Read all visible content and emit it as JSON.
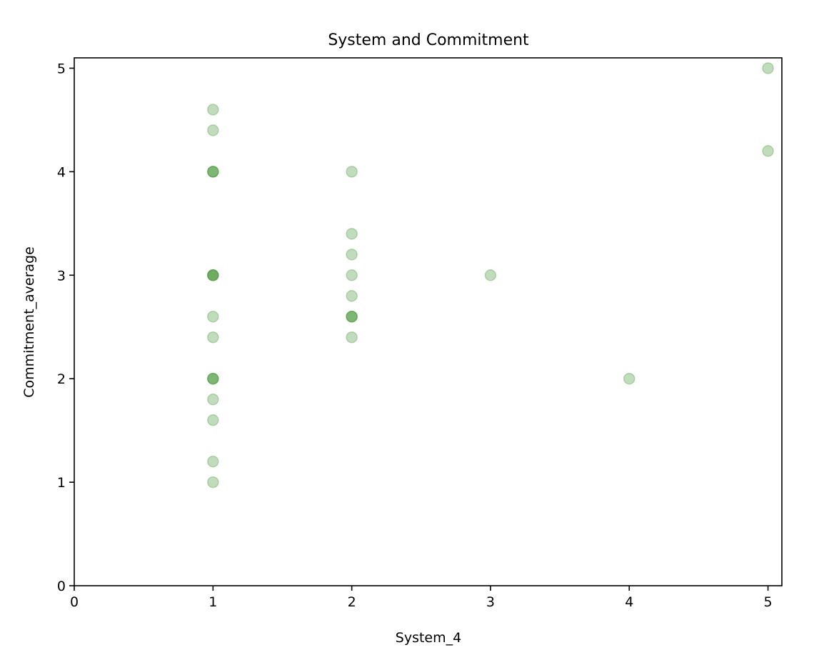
{
  "chart_data": {
    "type": "scatter",
    "title": "System and Commitment",
    "xlabel": "System_4",
    "ylabel": "Commitment_average",
    "xlim": [
      0,
      5.1
    ],
    "ylim": [
      0,
      5.1
    ],
    "xticks": [
      0,
      1,
      2,
      3,
      4,
      5
    ],
    "yticks": [
      0,
      1,
      2,
      3,
      4,
      5
    ],
    "grid": false,
    "legend": "none",
    "marker_color": "#4e9a3f",
    "marker_alpha": 0.35,
    "series": [
      {
        "x": [
          1,
          1,
          1,
          1,
          1,
          1,
          1,
          1,
          1,
          1,
          1,
          1,
          1,
          1,
          1,
          1,
          1,
          1,
          2,
          2,
          2,
          2,
          2,
          2,
          2,
          2,
          2,
          3,
          4,
          5,
          5
        ],
        "y": [
          4.6,
          4.4,
          4,
          4,
          3,
          3,
          3,
          2.6,
          2.4,
          2,
          2,
          2,
          1.8,
          1.6,
          1.2,
          1,
          4,
          3,
          4,
          3.4,
          3.2,
          3,
          2.8,
          2.6,
          2.6,
          2.4,
          2.6,
          3,
          2,
          5,
          4.2
        ]
      }
    ]
  }
}
